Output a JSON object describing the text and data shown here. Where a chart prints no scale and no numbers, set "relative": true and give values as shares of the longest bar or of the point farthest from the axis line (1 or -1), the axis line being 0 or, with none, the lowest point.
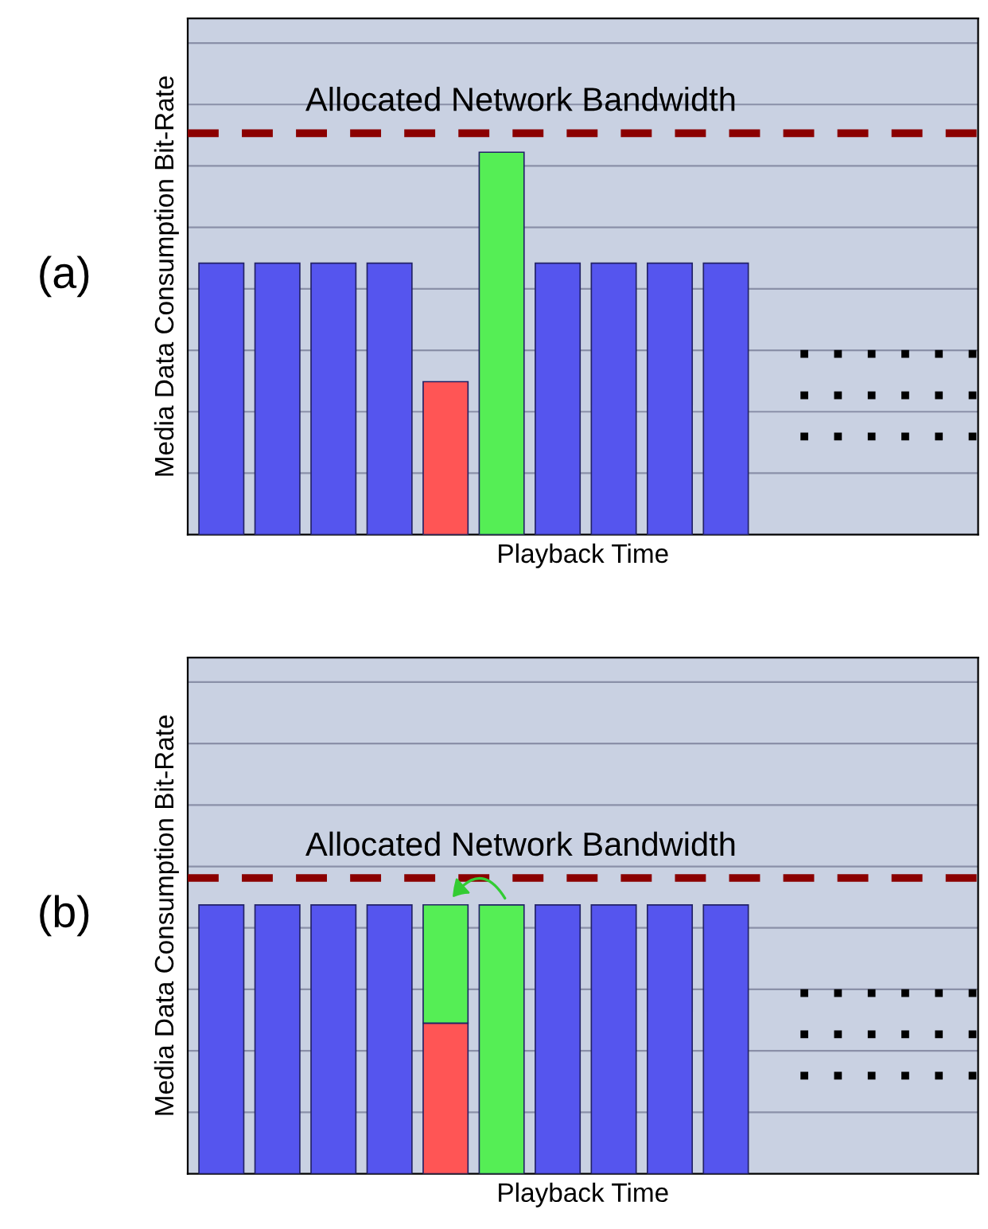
{
  "chart_data": [
    {
      "type": "bar",
      "title": "(a)",
      "xlabel": "Playback Time",
      "ylabel": "Media Data Consumption Bit-Rate",
      "relative": true,
      "categories": [
        null,
        null,
        null,
        null,
        null,
        null,
        null,
        null,
        null,
        null
      ],
      "series": [
        {
          "values": [
            0.71,
            0.71,
            0.71,
            0.71,
            0.4,
            1,
            0.71,
            0.71,
            0.71,
            0.71
          ],
          "colors": [
            "#5555ee",
            "#5555ee",
            "#5555ee",
            "#5555ee",
            "#ff5555",
            "#55ee55",
            "#5555ee",
            "#5555ee",
            "#5555ee",
            "#5555ee"
          ]
        }
      ],
      "ref_lines": [
        {
          "axis": "y",
          "value": 1.05,
          "label": "Allocated Network Bandwidth",
          "color": "#8b0000",
          "line_style": "dashed"
        }
      ],
      "grid": "y"
    },
    {
      "type": "bar",
      "title": "(b)",
      "xlabel": "Playback Time",
      "ylabel": "Media Data Consumption Bit-Rate",
      "relative": true,
      "stacked": true,
      "categories": [
        null,
        null,
        null,
        null,
        null,
        null,
        null,
        null,
        null,
        null
      ],
      "series": [
        {
          "values": [
            1,
            1,
            1,
            1,
            0.56,
            1,
            1,
            1,
            1,
            1
          ],
          "colors": [
            "#5555ee",
            "#5555ee",
            "#5555ee",
            "#5555ee",
            "#ff5555",
            "#55ee55",
            "#5555ee",
            "#5555ee",
            "#5555ee",
            "#5555ee"
          ]
        },
        {
          "values": [
            null,
            null,
            null,
            null,
            0.44,
            null,
            null,
            null,
            null,
            null
          ],
          "color": "#55ee55"
        }
      ],
      "ref_lines": [
        {
          "axis": "y",
          "value": 1.1,
          "label": "Allocated Network Bandwidth",
          "color": "#8b0000",
          "line_style": "dashed"
        }
      ],
      "grid": "y"
    }
  ]
}
